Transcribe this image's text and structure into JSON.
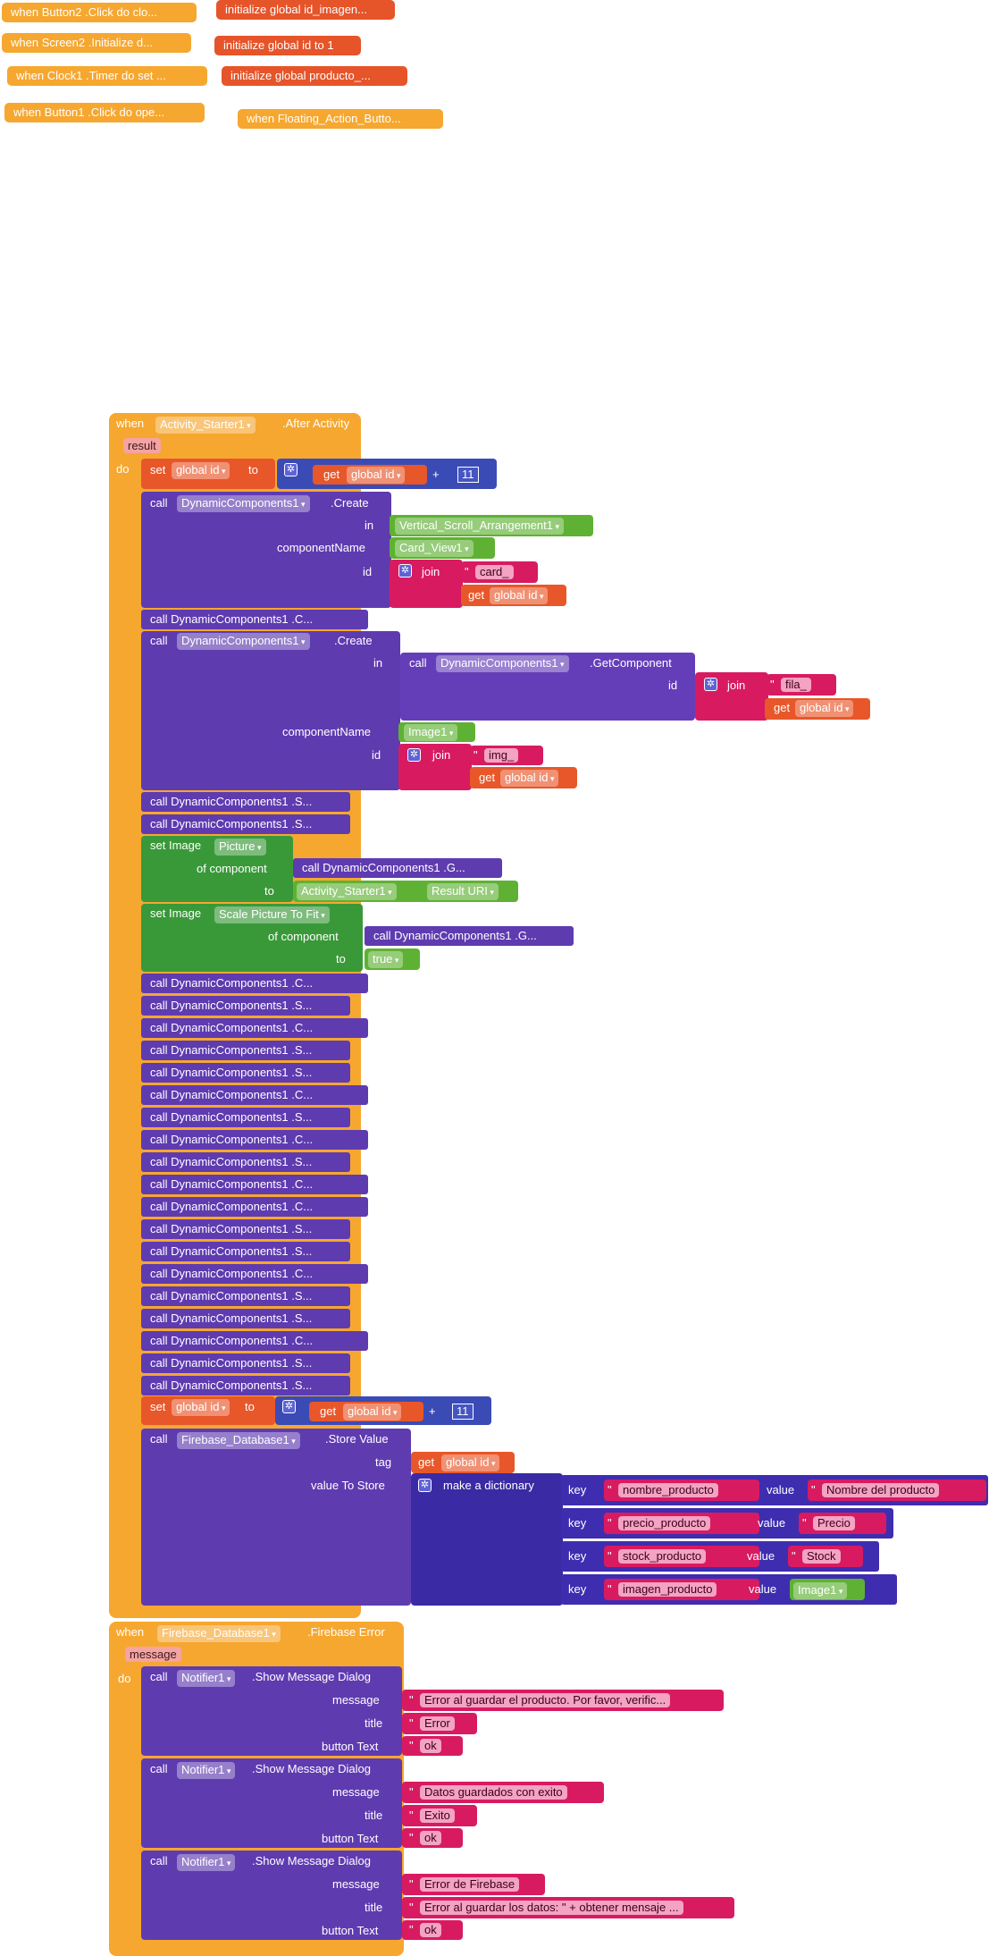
{
  "collapsed_events": [
    {
      "label": "when Button2 .Click do clo..."
    },
    {
      "label": "when Screen2 .Initialize d..."
    },
    {
      "label": "when Clock1 .Timer do set ..."
    },
    {
      "label": "when Button1 .Click do ope..."
    },
    {
      "label": "when Floating_Action_Butto..."
    }
  ],
  "collapsed_globals": [
    {
      "label": "initialize global id_imagen..."
    },
    {
      "label": "initialize global id to 1"
    },
    {
      "label": "initialize global producto_..."
    }
  ],
  "after_activity": {
    "when": "when",
    "component": "Activity_Starter1",
    "event": ".After Activity",
    "param": "result",
    "do": "do",
    "set1": {
      "set": "set",
      "var": "global id",
      "to": "to",
      "get": "get",
      "getvar": "global id",
      "op": "+",
      "num": "11"
    },
    "create1": {
      "call": "call",
      "comp": "DynamicComponents1",
      "method": ".Create",
      "in": "in",
      "in_val": "Vertical_Scroll_Arrangement1",
      "cn": "componentName",
      "cn_val": "Card_View1",
      "id": "id",
      "join": "join",
      "str": "card_",
      "get": "get",
      "getvar": "global id"
    },
    "collapsed_c1": "call DynamicComponents1 .C...",
    "create2": {
      "call": "call",
      "comp": "DynamicComponents1",
      "method": ".Create",
      "in": "in",
      "inner_call": "call",
      "inner_comp": "DynamicComponents1",
      "inner_method": ".GetComponent",
      "inner_id": "id",
      "join": "join",
      "str1": "fila_",
      "get": "get",
      "getvar1": "global id",
      "cn": "componentName",
      "cn_val": "Image1",
      "id": "id",
      "str2": "img_",
      "getvar2": "global id"
    },
    "collapsed_s1": "call DynamicComponents1 .S...",
    "collapsed_s2": "call DynamicComponents1 .S...",
    "setimg1": {
      "set": "set Image",
      "prop": "Picture",
      "of": "of component",
      "call": "call DynamicComponents1 .G...",
      "to": "to",
      "comp": "Activity_Starter1",
      "prop2": "Result URI"
    },
    "setimg2": {
      "set": "set Image",
      "prop": "Scale Picture To Fit",
      "of": "of component",
      "call": "call DynamicComponents1 .G...",
      "to": "to",
      "val": "true"
    },
    "collapsed_list": [
      "call DynamicComponents1 .C...",
      "call DynamicComponents1 .S...",
      "call DynamicComponents1 .C...",
      "call DynamicComponents1 .S...",
      "call DynamicComponents1 .S...",
      "call DynamicComponents1 .C...",
      "call DynamicComponents1 .S...",
      "call DynamicComponents1 .C...",
      "call DynamicComponents1 .S...",
      "call DynamicComponents1 .C...",
      "call DynamicComponents1 .C...",
      "call DynamicComponents1 .S...",
      "call DynamicComponents1 .S...",
      "call DynamicComponents1 .C...",
      "call DynamicComponents1 .S...",
      "call DynamicComponents1 .S...",
      "call DynamicComponents1 .C...",
      "call DynamicComponents1 .S...",
      "call DynamicComponents1 .S..."
    ],
    "set2": {
      "set": "set",
      "var": "global id",
      "to": "to",
      "get": "get",
      "getvar": "global id",
      "op": "+",
      "num": "11"
    },
    "store": {
      "call": "call",
      "comp": "Firebase_Database1",
      "method": ".Store Value",
      "tag": "tag",
      "get": "get",
      "getvar": "global id",
      "vts": "value To Store",
      "dict": "make a dictionary",
      "pairs": [
        {
          "key": "key",
          "k": "nombre_producto",
          "value": "value",
          "v": "Nombre del producto"
        },
        {
          "key": "key",
          "k": "precio_producto",
          "value": "value",
          "v": "Precio"
        },
        {
          "key": "key",
          "k": "stock_producto",
          "value": "value",
          "v": "Stock"
        },
        {
          "key": "key",
          "k": "imagen_producto",
          "value": "value",
          "v": "Image1"
        }
      ]
    }
  },
  "firebase_error": {
    "when": "when",
    "component": "Firebase_Database1",
    "event": ".Firebase Error",
    "param": "message",
    "do": "do",
    "dialogs": [
      {
        "call": "call",
        "comp": "Notifier1",
        "method": ".Show Message Dialog",
        "message": "message",
        "msg": "Error al guardar el producto. Por favor, verific...",
        "title": "title",
        "ttl": "Error",
        "bt": "button Text",
        "btn": "ok"
      },
      {
        "call": "call",
        "comp": "Notifier1",
        "method": ".Show Message Dialog",
        "message": "message",
        "msg": "Datos guardados con exito",
        "title": "title",
        "ttl": "Exito",
        "bt": "button Text",
        "btn": "ok"
      },
      {
        "call": "call",
        "comp": "Notifier1",
        "method": ".Show Message Dialog",
        "message": "message",
        "msg": "Error de Firebase",
        "title": "title",
        "ttl": "Error al guardar los datos: \" + obtener mensaje ...",
        "bt": "button Text",
        "btn": "ok"
      }
    ]
  }
}
